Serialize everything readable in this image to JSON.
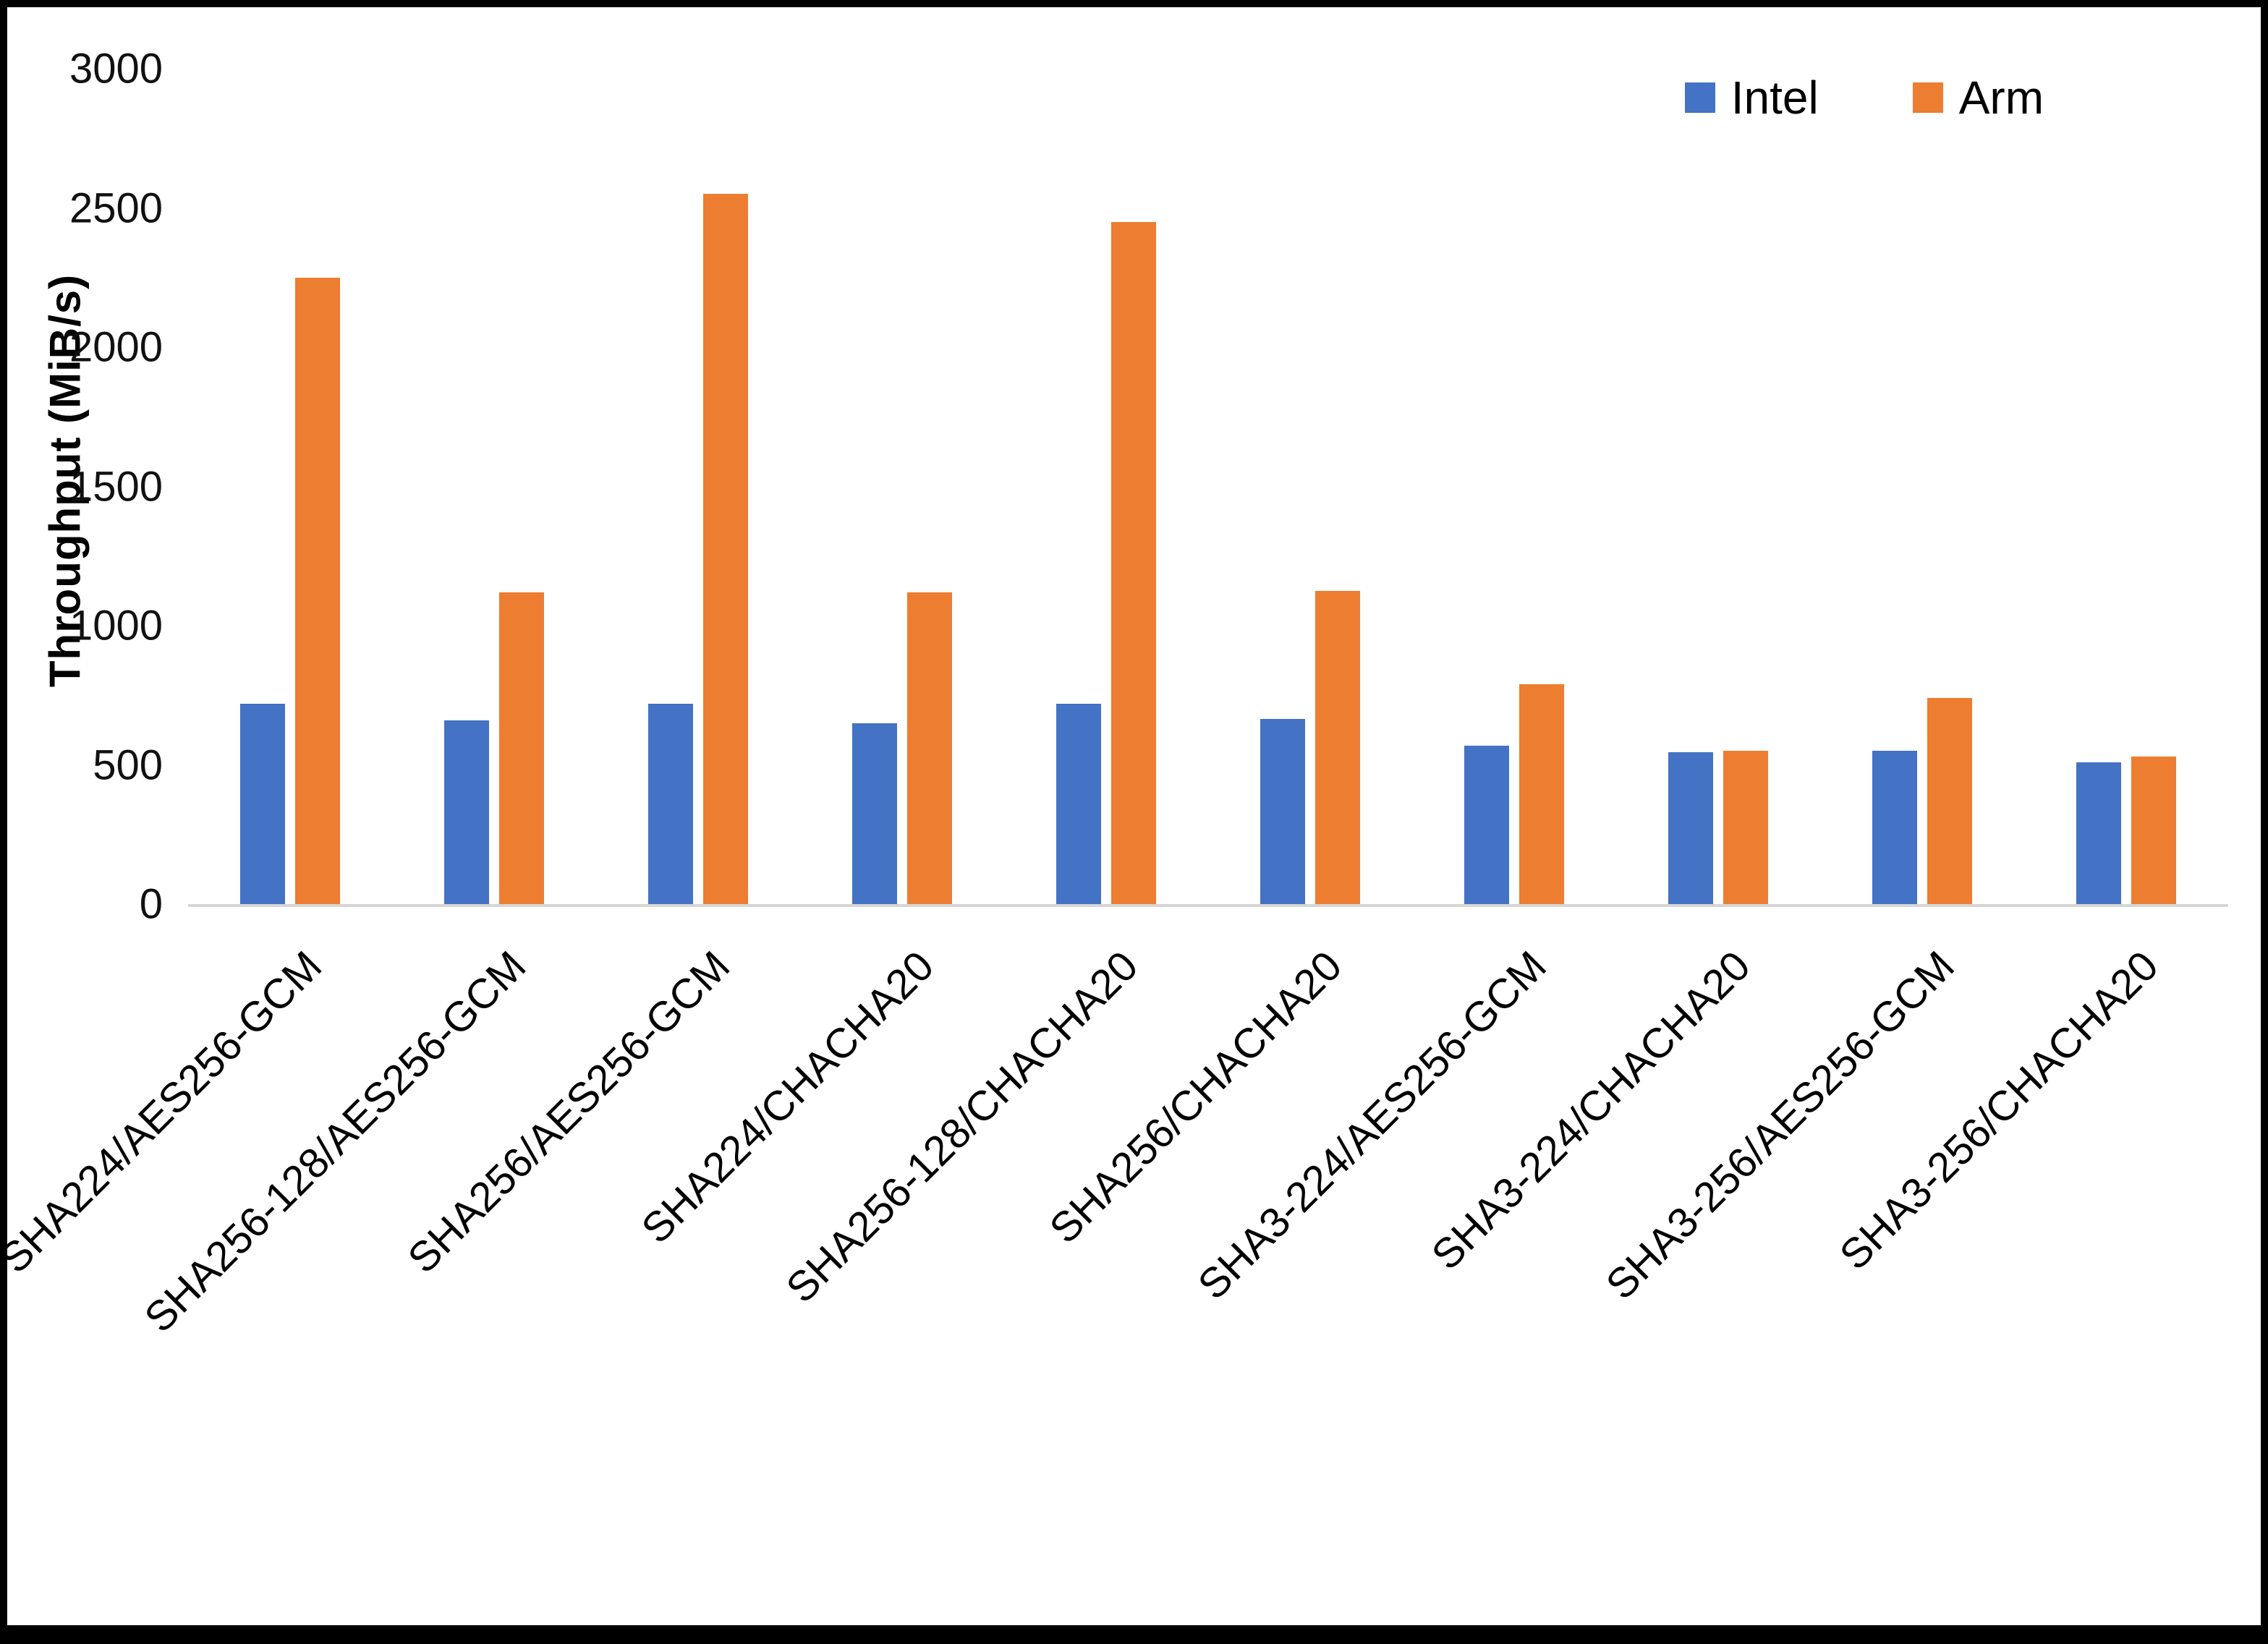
{
  "chart_data": {
    "type": "bar",
    "title": "",
    "xlabel": "",
    "ylabel": "Throughput (MiB/s)",
    "ylim": [
      0,
      3000
    ],
    "yticks": [
      0,
      500,
      1000,
      1500,
      2000,
      2500,
      3000
    ],
    "grid": false,
    "legend_position": "top-right",
    "categories": [
      "SHA224/AES256-GCM",
      "SHA256-128/AES256-GCM",
      "SHA256/AES256-GCM",
      "SHA224/CHACHA20",
      "SHA256-128/CHACHA20",
      "SHA256/CHACHA20",
      "SHA3-224/AES256-GCM",
      "SHA3-224/CHACHA20",
      "SHA3-256/AES256-GCM",
      "SHA3-256/CHACHA20"
    ],
    "series": [
      {
        "name": "Intel",
        "color": "#4472C4",
        "values": [
          720,
          660,
          720,
          650,
          720,
          665,
          570,
          545,
          550,
          510
        ]
      },
      {
        "name": "Arm",
        "color": "#ED7D31",
        "values": [
          2250,
          1120,
          2550,
          1120,
          2450,
          1125,
          790,
          550,
          740,
          530
        ]
      }
    ]
  }
}
